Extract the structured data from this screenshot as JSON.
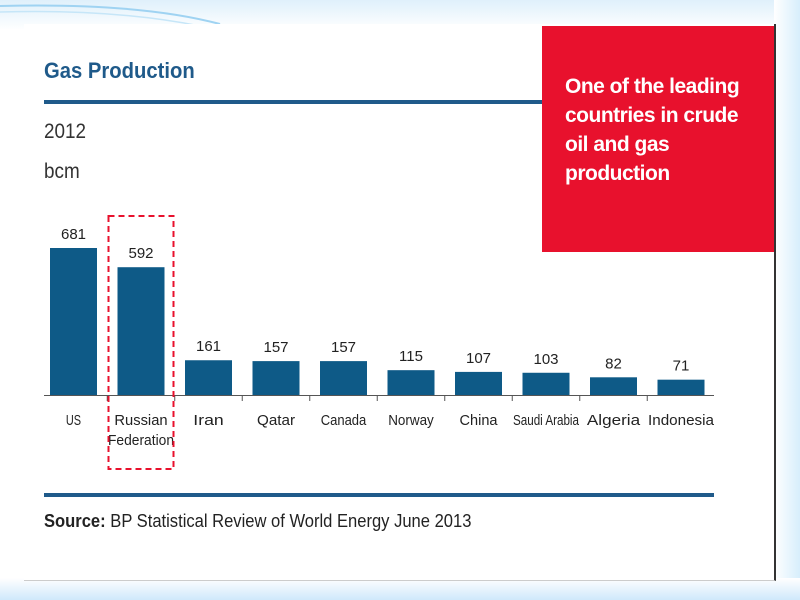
{
  "title": "Gas Production",
  "subtitle_year": "2012",
  "subtitle_unit": "bcm",
  "callout_text": "One of the leading countries in crude oil and gas production",
  "source_label": "Source:",
  "source_text": "BP Statistical Review of World Energy June 2013",
  "colors": {
    "bar": "#0e5a87",
    "title": "#1f5a8a",
    "callout": "#e8112d",
    "highlight_border": "#e8112d"
  },
  "chart_data": {
    "type": "bar",
    "categories": [
      "US",
      "Russian Federation",
      "Iran",
      "Qatar",
      "Canada",
      "Norway",
      "China",
      "Saudi Arabia",
      "Algeria",
      "Indonesia"
    ],
    "category_lines": [
      [
        "US"
      ],
      [
        "Russian",
        "Federation"
      ],
      [
        "Iran"
      ],
      [
        "Qatar"
      ],
      [
        "Canada"
      ],
      [
        "Norway"
      ],
      [
        "China"
      ],
      [
        "Saudi Arabia"
      ],
      [
        "Algeria"
      ],
      [
        "Indonesia"
      ]
    ],
    "values": [
      681,
      592,
      161,
      157,
      157,
      115,
      107,
      103,
      82,
      71
    ],
    "data_labels": [
      "681",
      "592",
      "161",
      "157",
      "157",
      "115",
      "107",
      "103",
      "82",
      "71"
    ],
    "highlighted_category": "Russian Federation",
    "ylim": [
      0,
      681
    ]
  }
}
